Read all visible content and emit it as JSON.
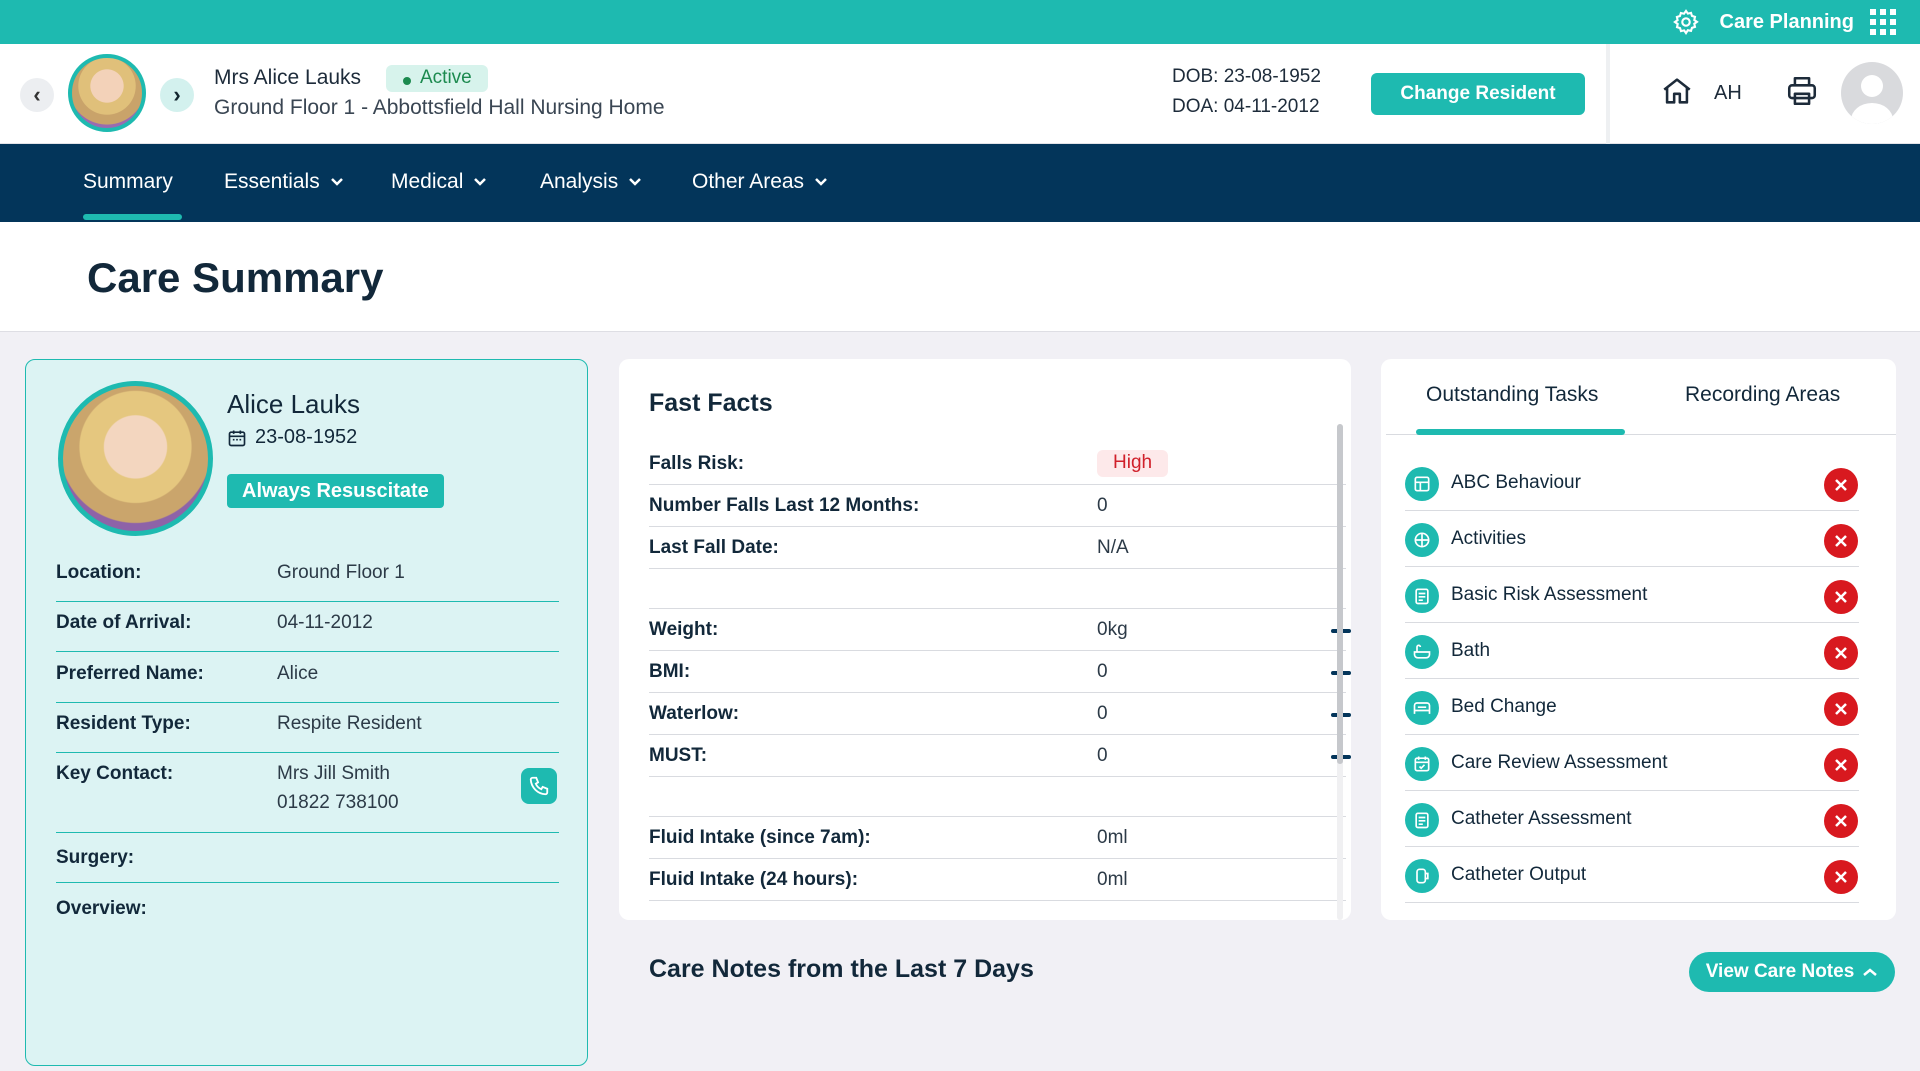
{
  "topbar": {
    "app_name": "Care Planning"
  },
  "header": {
    "resident_name": "Mrs Alice Lauks",
    "status": "Active",
    "location": "Ground Floor 1 - Abbottsfield Hall Nursing Home",
    "dob": "DOB: 23-08-1952",
    "doa": "DOA: 04-11-2012",
    "change_button": "Change Resident",
    "user_initials": "AH"
  },
  "nav": {
    "items": [
      {
        "label": "Summary",
        "has_dropdown": false,
        "active": true
      },
      {
        "label": "Essentials",
        "has_dropdown": true
      },
      {
        "label": "Medical",
        "has_dropdown": true
      },
      {
        "label": "Analysis",
        "has_dropdown": true
      },
      {
        "label": "Other Areas",
        "has_dropdown": true
      }
    ]
  },
  "page": {
    "title": "Care Summary"
  },
  "profile": {
    "name": "Alice Lauks",
    "dob": "23-08-1952",
    "resus_status": "Always Resuscitate",
    "rows": [
      {
        "label": "Location:",
        "value": "Ground Floor 1"
      },
      {
        "label": "Date of Arrival:",
        "value": "04-11-2012"
      },
      {
        "label": "Preferred Name:",
        "value": "Alice"
      },
      {
        "label": "Resident Type:",
        "value": "Respite Resident"
      },
      {
        "label": "Key Contact:",
        "value": "Mrs Jill Smith",
        "value2": "01822 738100"
      },
      {
        "label": "Surgery:",
        "value": ""
      },
      {
        "label": "Overview:",
        "value": ""
      }
    ]
  },
  "fast_facts": {
    "title": "Fast Facts",
    "rows": [
      {
        "label": "Falls Risk:",
        "value": "High",
        "badge": "high"
      },
      {
        "label": "Number Falls Last 12 Months:",
        "value": "0"
      },
      {
        "label": "Last Fall Date:",
        "value": "N/A"
      },
      {
        "label": "Weight:",
        "value": "0kg",
        "trend": "flat"
      },
      {
        "label": "BMI:",
        "value": "0",
        "trend": "flat"
      },
      {
        "label": "Waterlow:",
        "value": "0",
        "trend": "flat"
      },
      {
        "label": "MUST:",
        "value": "0",
        "trend": "flat"
      },
      {
        "label": "Fluid Intake (since 7am):",
        "value": "0ml"
      },
      {
        "label": "Fluid Intake (24 hours):",
        "value": "0ml"
      }
    ]
  },
  "tasks": {
    "tabs": [
      {
        "label": "Outstanding Tasks",
        "active": true
      },
      {
        "label": "Recording Areas",
        "active": false
      }
    ],
    "items": [
      {
        "label": "ABC Behaviour",
        "icon": "calendar-grid-icon"
      },
      {
        "label": "Activities",
        "icon": "ball-icon"
      },
      {
        "label": "Basic Risk Assessment",
        "icon": "clipboard-icon"
      },
      {
        "label": "Bath",
        "icon": "bath-icon"
      },
      {
        "label": "Bed Change",
        "icon": "bed-icon"
      },
      {
        "label": "Care Review Assessment",
        "icon": "calendar-check-icon"
      },
      {
        "label": "Catheter Assessment",
        "icon": "clipboard-icon"
      },
      {
        "label": "Catheter Output",
        "icon": "catheter-icon"
      }
    ]
  },
  "care_notes": {
    "title": "Care Notes from the Last 7 Days",
    "button": "View Care Notes"
  },
  "colors": {
    "teal": "#1ebab0",
    "navy": "#03355a",
    "danger": "#d8191f",
    "active_green": "#1c8a4f"
  }
}
